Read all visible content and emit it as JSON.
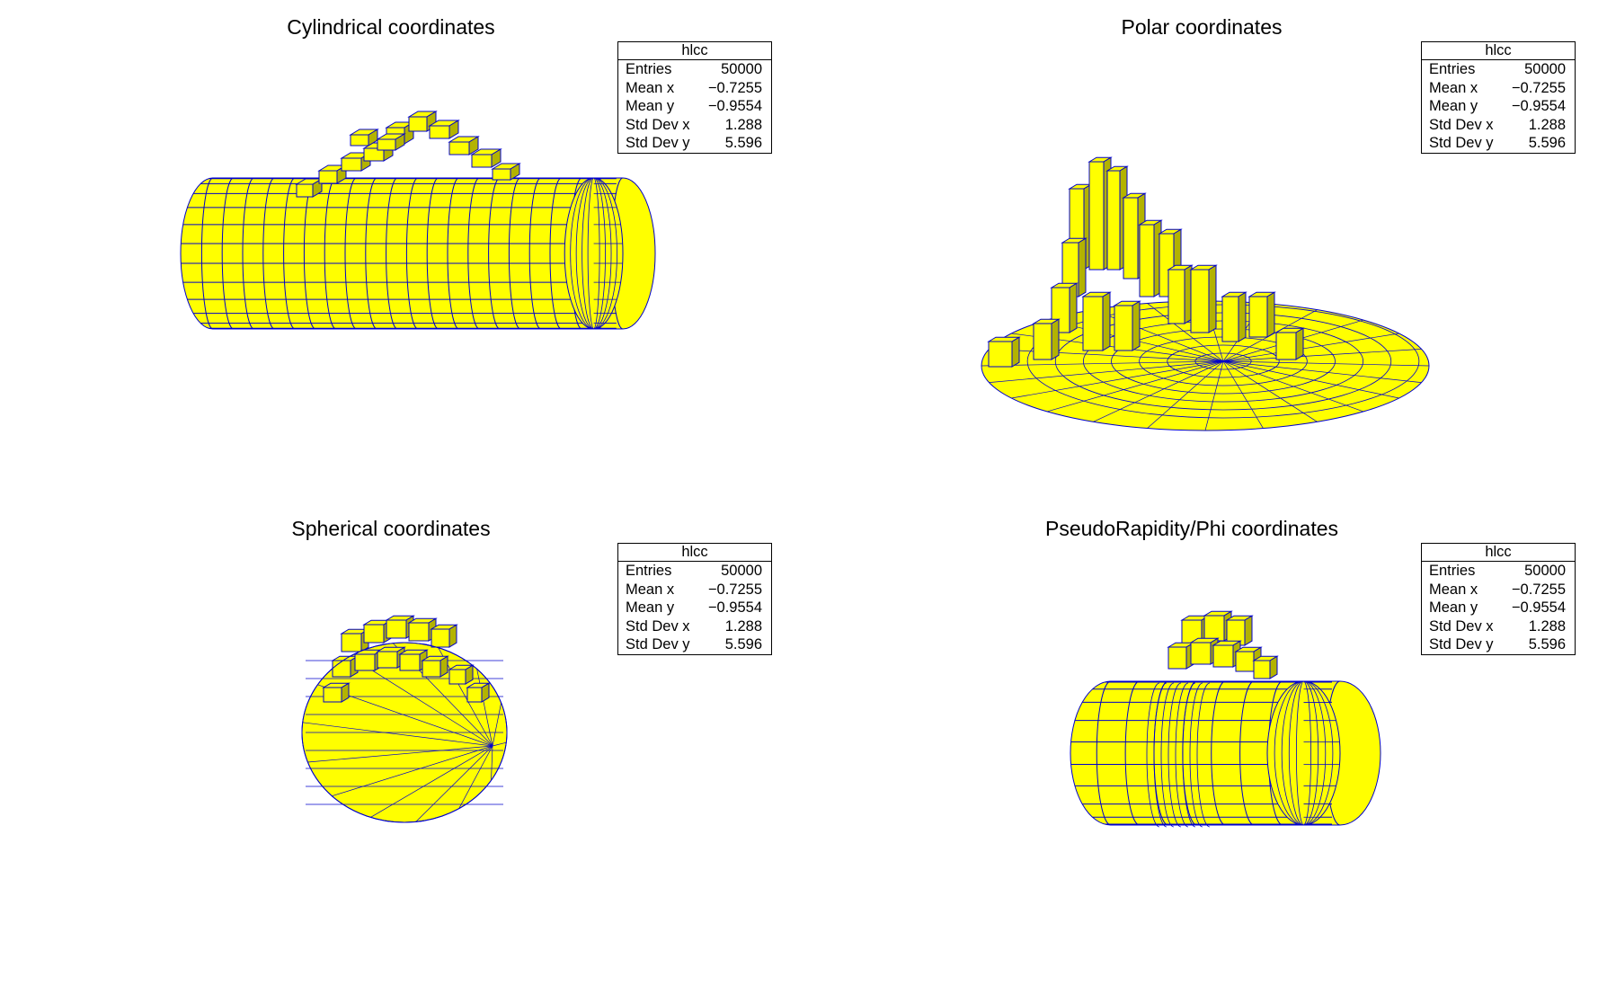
{
  "colors": {
    "fill": "#ffff00",
    "shade": "#b3b300",
    "edge": "#0000cc"
  },
  "stats_labels": {
    "name": "hlcc",
    "entries": "Entries",
    "mean_x": "Mean x",
    "mean_y": "Mean y",
    "std_x": "Std Dev x",
    "std_y": "Std Dev y"
  },
  "chart_data": [
    {
      "type": "lego",
      "title": "Cylindrical coordinates",
      "stats": {
        "name": "hlcc",
        "entries": "50000",
        "mean_x": "−0.7255",
        "mean_y": "−0.9554",
        "std_x": "1.288",
        "std_y": "5.596"
      }
    },
    {
      "type": "lego",
      "title": "Polar coordinates",
      "stats": {
        "name": "hlcc",
        "entries": "50000",
        "mean_x": "−0.7255",
        "mean_y": "−0.9554",
        "std_x": "1.288",
        "std_y": "5.596"
      }
    },
    {
      "type": "lego",
      "title": "Spherical coordinates",
      "stats": {
        "name": "hlcc",
        "entries": "50000",
        "mean_x": "−0.7255",
        "mean_y": "−0.9554",
        "std_x": "1.288",
        "std_y": "5.596"
      }
    },
    {
      "type": "lego",
      "title": "PseudoRapidity/Phi coordinates",
      "stats": {
        "name": "hlcc",
        "entries": "50000",
        "mean_x": "−0.7255",
        "mean_y": "−0.9554",
        "std_x": "1.288",
        "std_y": "5.596"
      }
    }
  ]
}
